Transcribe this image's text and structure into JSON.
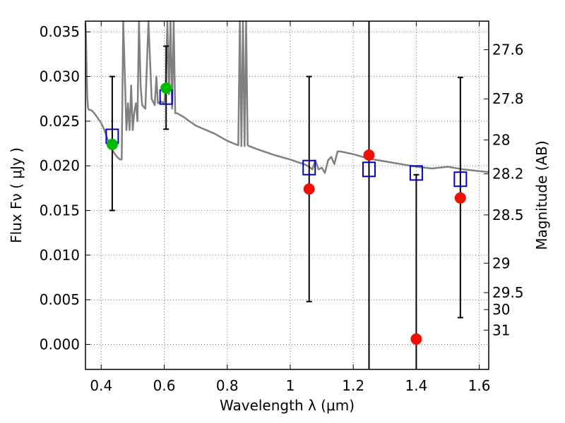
{
  "chart_data": {
    "type": "scatter",
    "title": "",
    "xlabel": "Wavelength  λ (μm)",
    "ylabel": "Flux  Fν  ( μJy )",
    "y2label": "Magnitude (AB)",
    "xlim": [
      0.35,
      1.63
    ],
    "ylim": [
      -0.0028,
      0.0362
    ],
    "grid": true,
    "xticks": [
      0.4,
      0.6,
      0.8,
      1.0,
      1.2,
      1.4,
      1.6
    ],
    "xtick_labels": [
      "0.4",
      "0.6",
      "0.8",
      "1",
      "1.2",
      "1.4",
      "1.6"
    ],
    "yticks": [
      0.0,
      0.005,
      0.01,
      0.015,
      0.02,
      0.025,
      0.03,
      0.035
    ],
    "ytick_labels": [
      "0.000",
      "0.005",
      "0.010",
      "0.015",
      "0.020",
      "0.025",
      "0.030",
      "0.035"
    ],
    "mag_ticks": [
      {
        "label": "27.6",
        "flux": 0.033
      },
      {
        "label": "27.8",
        "flux": 0.0275
      },
      {
        "label": "28",
        "flux": 0.0229
      },
      {
        "label": "28.2",
        "flux": 0.0191
      },
      {
        "label": "28.5",
        "flux": 0.0145
      },
      {
        "label": "29",
        "flux": 0.0091
      },
      {
        "label": "29.5",
        "flux": 0.0058
      },
      {
        "label": "30",
        "flux": 0.0039
      },
      {
        "label": "31",
        "flux": 0.0016
      }
    ],
    "model_spectrum": {
      "color": "#808080",
      "x": [
        0.35,
        0.352,
        0.354,
        0.356,
        0.358,
        0.36,
        0.37,
        0.38,
        0.39,
        0.4,
        0.41,
        0.42,
        0.43,
        0.44,
        0.45,
        0.46,
        0.465,
        0.47,
        0.475,
        0.48,
        0.485,
        0.49,
        0.495,
        0.5,
        0.505,
        0.51,
        0.515,
        0.52,
        0.525,
        0.53,
        0.535,
        0.54,
        0.55,
        0.56,
        0.57,
        0.575,
        0.58,
        0.59,
        0.6,
        0.605,
        0.61,
        0.615,
        0.62,
        0.625,
        0.63,
        0.635,
        0.64,
        0.66,
        0.68,
        0.7,
        0.72,
        0.74,
        0.76,
        0.78,
        0.8,
        0.82,
        0.835,
        0.84,
        0.845,
        0.85,
        0.855,
        0.86,
        0.865,
        0.87,
        0.9,
        0.95,
        1.0,
        1.05,
        1.06,
        1.07,
        1.08,
        1.09,
        1.1,
        1.11,
        1.12,
        1.13,
        1.14,
        1.15,
        1.16,
        1.2,
        1.25,
        1.3,
        1.35,
        1.4,
        1.45,
        1.5,
        1.55,
        1.6,
        1.63
      ],
      "y": [
        0.036,
        0.034,
        0.03,
        0.0275,
        0.0265,
        0.0263,
        0.0262,
        0.0258,
        0.0253,
        0.0248,
        0.024,
        0.023,
        0.0222,
        0.0215,
        0.021,
        0.0207,
        0.0207,
        0.0362,
        0.03,
        0.024,
        0.027,
        0.024,
        0.029,
        0.024,
        0.026,
        0.027,
        0.025,
        0.0362,
        0.029,
        0.0268,
        0.0266,
        0.0264,
        0.0362,
        0.0275,
        0.0268,
        0.03,
        0.027,
        0.0272,
        0.027,
        0.029,
        0.0362,
        0.028,
        0.0362,
        0.0264,
        0.0362,
        0.0259,
        0.0259,
        0.0255,
        0.025,
        0.0245,
        0.0242,
        0.0239,
        0.0236,
        0.0232,
        0.0228,
        0.0225,
        0.0223,
        0.0362,
        0.0222,
        0.0362,
        0.0222,
        0.0362,
        0.0223,
        0.0222,
        0.0218,
        0.0212,
        0.0207,
        0.0201,
        0.0199,
        0.0196,
        0.0206,
        0.0196,
        0.0198,
        0.0192,
        0.0206,
        0.021,
        0.0202,
        0.0216,
        0.0216,
        0.0213,
        0.0208,
        0.0205,
        0.0202,
        0.0199,
        0.0197,
        0.0199,
        0.0196,
        0.0194,
        0.0193
      ]
    },
    "series": [
      {
        "marker": "square",
        "color": "#0000cc",
        "x": [
          0.435,
          0.606,
          1.06,
          1.25,
          1.4,
          1.54
        ],
        "y": [
          0.0233,
          0.0277,
          0.0198,
          0.0196,
          0.0192,
          0.0185
        ]
      },
      {
        "marker": "circle",
        "color": "#00bb00",
        "x": [
          0.435,
          0.606
        ],
        "y": [
          0.0224,
          0.0287
        ]
      },
      {
        "marker": "circle",
        "color": "#ee1100",
        "x": [
          1.06,
          1.25,
          1.4,
          1.54
        ],
        "y": [
          0.0174,
          0.0212,
          0.0006,
          0.0164
        ]
      }
    ],
    "error_bars": [
      {
        "x": 0.435,
        "low": 0.015,
        "high": 0.03
      },
      {
        "x": 0.606,
        "low": 0.0241,
        "high": 0.0334
      },
      {
        "x": 1.06,
        "low": 0.0048,
        "high": 0.03
      },
      {
        "x": 1.25,
        "low": -0.0028,
        "high": 0.0362
      },
      {
        "x": 1.4,
        "low": -0.0028,
        "high": 0.019
      },
      {
        "x": 1.54,
        "low": 0.003,
        "high": 0.0299
      }
    ]
  }
}
